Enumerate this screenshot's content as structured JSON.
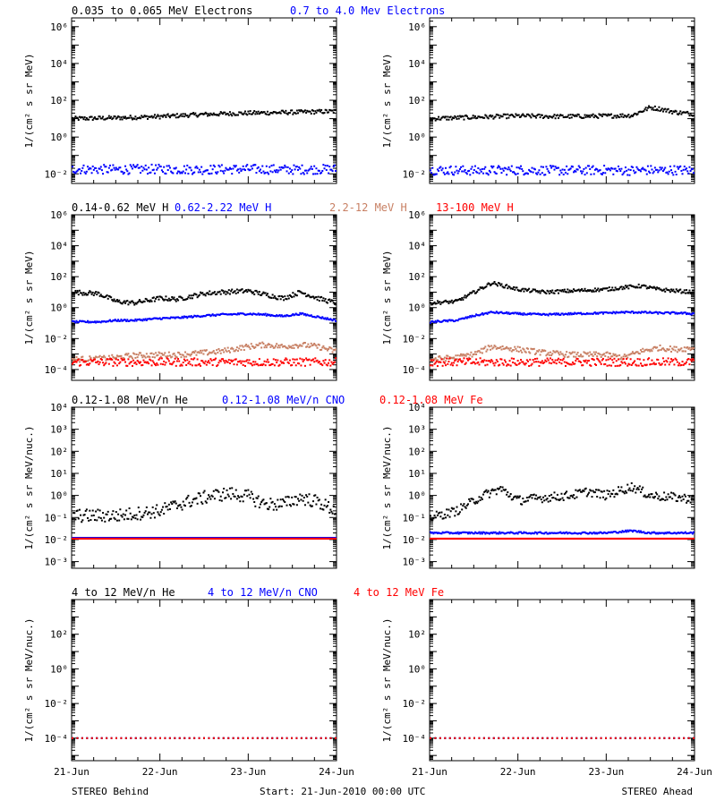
{
  "colors": {
    "black": "#000000",
    "blue": "#0000ff",
    "tan": "#c88064",
    "red": "#ff0000"
  },
  "footer": {
    "left": "STEREO Behind",
    "center": "Start: 21-Jun-2010 00:00 UTC",
    "right": "STEREO Ahead"
  },
  "x_axis": {
    "range": [
      "2010-06-21",
      "2010-06-24"
    ],
    "tick_labels": [
      "21-Jun",
      "22-Jun",
      "23-Jun",
      "24-Jun"
    ]
  },
  "rows": [
    {
      "ylabel": "1/(cm² s sr MeV)",
      "ylim": [
        0.003,
        3000000
      ],
      "scale": "log",
      "ticks": [
        {
          "value": 0.01,
          "label": "10⁻²"
        },
        {
          "value": 1,
          "label": "10⁰"
        },
        {
          "value": 100,
          "label": "10²"
        },
        {
          "value": 10000,
          "label": "10⁴"
        },
        {
          "value": 1000000,
          "label": "10⁶"
        }
      ],
      "legend": [
        {
          "text": "0.035 to 0.065 MeV Electrons",
          "color": "#000000"
        },
        {
          "text": "0.7 to 4.0 Mev Electrons",
          "color": "#0000ff"
        }
      ]
    },
    {
      "ylabel": "1/(cm² s sr MeV)",
      "ylim": [
        2e-05,
        1000000
      ],
      "scale": "log",
      "ticks": [
        {
          "value": 0.0001,
          "label": "10⁻⁴"
        },
        {
          "value": 0.01,
          "label": "10⁻²"
        },
        {
          "value": 1,
          "label": "10⁰"
        },
        {
          "value": 100,
          "label": "10²"
        },
        {
          "value": 10000,
          "label": "10⁴"
        },
        {
          "value": 1000000,
          "label": "10⁶"
        }
      ],
      "legend": [
        {
          "text": "0.14-0.62 MeV H",
          "color": "#000000"
        },
        {
          "text": "0.62-2.22 MeV H",
          "color": "#0000ff"
        },
        {
          "text": "2.2-12 MeV H",
          "color": "#c88064"
        },
        {
          "text": "13-100 MeV H",
          "color": "#ff0000"
        }
      ]
    },
    {
      "ylabel": "1/(cm² s sr MeV/nuc.)",
      "ylim": [
        0.0005,
        10000
      ],
      "scale": "log",
      "ticks": [
        {
          "value": 0.001,
          "label": "10⁻³"
        },
        {
          "value": 0.01,
          "label": "10⁻²"
        },
        {
          "value": 0.1,
          "label": "10⁻¹"
        },
        {
          "value": 1,
          "label": "10⁰"
        },
        {
          "value": 10,
          "label": "10¹"
        },
        {
          "value": 100,
          "label": "10²"
        },
        {
          "value": 1000,
          "label": "10³"
        },
        {
          "value": 10000,
          "label": "10⁴"
        }
      ],
      "legend": [
        {
          "text": "0.12-1.08 MeV/n He",
          "color": "#000000"
        },
        {
          "text": "0.12-1.08 MeV/n CNO",
          "color": "#0000ff"
        },
        {
          "text": "0.12-1.08 MeV Fe",
          "color": "#ff0000"
        }
      ]
    },
    {
      "ylabel": "1/(cm² s sr MeV/nuc.)",
      "ylim": [
        5e-06,
        10000
      ],
      "scale": "log",
      "ticks": [
        {
          "value": 0.0001,
          "label": "10⁻⁴"
        },
        {
          "value": 0.01,
          "label": "10⁻²"
        },
        {
          "value": 1,
          "label": "10⁰"
        },
        {
          "value": 100,
          "label": "10²"
        }
      ],
      "legend": [
        {
          "text": "4 to 12 MeV/n He",
          "color": "#000000"
        },
        {
          "text": "4 to 12 MeV/n CNO",
          "color": "#0000ff"
        },
        {
          "text": "4 to 12 MeV Fe",
          "color": "#ff0000"
        }
      ]
    }
  ],
  "chart_data": [
    {
      "type": "scatter",
      "panel": "Behind",
      "row": 1,
      "x_days": [
        0,
        0.5,
        1.0,
        1.5,
        2.0,
        2.5,
        3.0
      ],
      "series": [
        {
          "name": "0.035 to 0.065 MeV Electrons",
          "color": "#000000",
          "values": [
            10,
            11,
            13,
            17,
            20,
            22,
            25
          ],
          "scatter": 1.3
        },
        {
          "name": "0.7 to 4.0 Mev Electrons",
          "color": "#0000ff",
          "values": [
            0.018,
            0.017,
            0.018,
            0.017,
            0.018,
            0.017,
            0.018
          ],
          "scatter": 1.8
        }
      ]
    },
    {
      "type": "scatter",
      "panel": "Ahead",
      "row": 1,
      "x_days": [
        0,
        0.5,
        1.0,
        1.5,
        2.0,
        2.3,
        2.5,
        2.6,
        2.8,
        3.0
      ],
      "series": [
        {
          "name": "0.035 to 0.065 MeV Electrons",
          "color": "#000000",
          "values": [
            10,
            12,
            14,
            13,
            14,
            15,
            40,
            35,
            22,
            18
          ],
          "scatter": 1.3
        },
        {
          "name": "0.7 to 4.0 Mev Electrons",
          "color": "#0000ff",
          "values": [
            0.016,
            0.015,
            0.016,
            0.015,
            0.016,
            0.015,
            0.016,
            0.015,
            0.016,
            0.015
          ],
          "scatter": 1.8
        }
      ]
    },
    {
      "type": "scatter",
      "panel": "Behind",
      "row": 2,
      "x_days": [
        0,
        0.3,
        0.5,
        0.7,
        1.0,
        1.2,
        1.5,
        1.7,
        2.0,
        2.2,
        2.4,
        2.6,
        2.8,
        3.0
      ],
      "series": [
        {
          "name": "0.14-0.62 MeV H",
          "color": "#000000",
          "values": [
            10,
            8,
            2.5,
            2,
            4,
            3.5,
            8,
            10,
            12,
            7,
            4,
            10,
            4,
            2
          ],
          "scatter": 1.4
        },
        {
          "name": "0.62-2.22 MeV H",
          "color": "#0000ff",
          "values": [
            0.12,
            0.12,
            0.15,
            0.15,
            0.2,
            0.22,
            0.3,
            0.35,
            0.4,
            0.35,
            0.28,
            0.4,
            0.25,
            0.15
          ],
          "scatter": 1.15
        },
        {
          "name": "2.2-12 MeV H",
          "color": "#c88064",
          "values": [
            0.00045,
            0.0005,
            0.0006,
            0.0008,
            0.0009,
            0.0009,
            0.0012,
            0.0015,
            0.003,
            0.004,
            0.003,
            0.004,
            0.003,
            0.0015
          ],
          "scatter": 1.5
        },
        {
          "name": "13-100 MeV H",
          "color": "#ff0000",
          "values": [
            0.0003,
            0.0003,
            0.0003,
            0.0003,
            0.0003,
            0.0003,
            0.0003,
            0.0003,
            0.0003,
            0.0003,
            0.0003,
            0.0003,
            0.0003,
            0.0003
          ],
          "scatter": 1.8
        }
      ]
    },
    {
      "type": "scatter",
      "panel": "Ahead",
      "row": 2,
      "x_days": [
        0,
        0.3,
        0.5,
        0.7,
        1.0,
        1.3,
        1.6,
        2.0,
        2.2,
        2.4,
        2.6,
        2.8,
        3.0
      ],
      "series": [
        {
          "name": "0.14-0.62 MeV H",
          "color": "#000000",
          "values": [
            2,
            2.5,
            10,
            40,
            15,
            10,
            12,
            15,
            20,
            25,
            15,
            12,
            10
          ],
          "scatter": 1.3
        },
        {
          "name": "0.62-2.22 MeV H",
          "color": "#0000ff",
          "values": [
            0.12,
            0.15,
            0.3,
            0.5,
            0.4,
            0.35,
            0.4,
            0.45,
            0.5,
            0.5,
            0.45,
            0.45,
            0.4
          ],
          "scatter": 1.15
        },
        {
          "name": "2.2-12 MeV H",
          "color": "#c88064",
          "values": [
            0.00045,
            0.0006,
            0.001,
            0.003,
            0.002,
            0.0012,
            0.0009,
            0.0009,
            0.0006,
            0.0015,
            0.0025,
            0.002,
            0.0025
          ],
          "scatter": 1.5
        },
        {
          "name": "13-100 MeV H",
          "color": "#ff0000",
          "values": [
            0.0003,
            0.0003,
            0.0003,
            0.0003,
            0.0003,
            0.0003,
            0.0003,
            0.0003,
            0.0003,
            0.0003,
            0.0003,
            0.0003,
            0.0003
          ],
          "scatter": 1.8
        }
      ]
    },
    {
      "type": "scatter",
      "panel": "Behind",
      "row": 3,
      "x_days": [
        0,
        0.5,
        1.0,
        1.3,
        1.6,
        1.8,
        2.0,
        2.2,
        2.4,
        2.6,
        2.8,
        3.0
      ],
      "series": [
        {
          "name": "0.12-1.08 MeV/n He",
          "color": "#000000",
          "values": [
            0.12,
            0.12,
            0.2,
            0.5,
            1.0,
            1.2,
            0.9,
            0.4,
            0.4,
            0.8,
            0.5,
            0.2
          ],
          "scatter": 2.0
        },
        {
          "name": "0.12-1.08 MeV/n CNO",
          "color": "#0000ff",
          "values": [
            0.012,
            0.012,
            0.012,
            0.012,
            0.012,
            0.012,
            0.012,
            0.012,
            0.012,
            0.012,
            0.012,
            0.012
          ],
          "scatter": 1.0
        },
        {
          "name": "0.12-1.08 MeV Fe",
          "color": "#ff0000",
          "values": [
            0.011,
            0.011,
            0.011,
            0.011,
            0.011,
            0.011,
            0.011,
            0.011,
            0.011,
            0.011,
            0.011,
            0.011
          ],
          "scatter": 1.0
        }
      ]
    },
    {
      "type": "scatter",
      "panel": "Ahead",
      "row": 3,
      "x_days": [
        0,
        0.3,
        0.6,
        0.8,
        1.0,
        1.3,
        1.6,
        1.8,
        2.0,
        2.3,
        2.5,
        2.8,
        3.0
      ],
      "series": [
        {
          "name": "0.12-1.08 MeV/n He",
          "color": "#000000",
          "values": [
            0.1,
            0.2,
            1.0,
            2.0,
            0.6,
            0.8,
            1.0,
            1.5,
            1.0,
            2.5,
            1.0,
            0.8,
            0.7
          ],
          "scatter": 1.6
        },
        {
          "name": "0.12-1.08 MeV/n CNO",
          "color": "#0000ff",
          "values": [
            0.02,
            0.02,
            0.02,
            0.02,
            0.02,
            0.02,
            0.02,
            0.02,
            0.02,
            0.025,
            0.02,
            0.02,
            0.02
          ],
          "scatter": 1.1
        },
        {
          "name": "0.12-1.08 MeV Fe",
          "color": "#ff0000",
          "values": [
            0.011,
            0.011,
            0.011,
            0.011,
            0.011,
            0.011,
            0.011,
            0.011,
            0.011,
            0.011,
            0.011,
            0.011,
            0.011
          ],
          "scatter": 1.0
        }
      ]
    },
    {
      "type": "scatter",
      "panel": "Behind",
      "row": 4,
      "x_days": [
        0,
        1.0,
        2.0,
        3.0
      ],
      "series": [
        {
          "name": "4 to 12 MeV/n He",
          "color": "#000000",
          "values": [
            0.0001,
            0.0001,
            0.0001,
            0.0001
          ],
          "scatter": 1.0
        },
        {
          "name": "4 to 12 MeV/n CNO",
          "color": "#0000ff",
          "values": [
            0.0001,
            0.0001,
            0.0001,
            0.0001
          ],
          "scatter": 1.0
        },
        {
          "name": "4 to 12 MeV Fe",
          "color": "#ff0000",
          "values": [
            0.0001,
            0.0001,
            0.0001,
            0.0001
          ],
          "scatter": 1.0
        }
      ]
    },
    {
      "type": "scatter",
      "panel": "Ahead",
      "row": 4,
      "x_days": [
        0,
        1.0,
        2.0,
        3.0
      ],
      "series": [
        {
          "name": "4 to 12 MeV/n He",
          "color": "#000000",
          "values": [
            0.0001,
            0.0001,
            0.0001,
            0.0001
          ],
          "scatter": 1.0
        },
        {
          "name": "4 to 12 MeV/n CNO",
          "color": "#0000ff",
          "values": [
            0.0001,
            0.0001,
            0.0001,
            0.0001
          ],
          "scatter": 1.0
        },
        {
          "name": "4 to 12 MeV Fe",
          "color": "#ff0000",
          "values": [
            0.0001,
            0.0001,
            0.0001,
            0.0001
          ],
          "scatter": 1.0
        }
      ]
    }
  ]
}
